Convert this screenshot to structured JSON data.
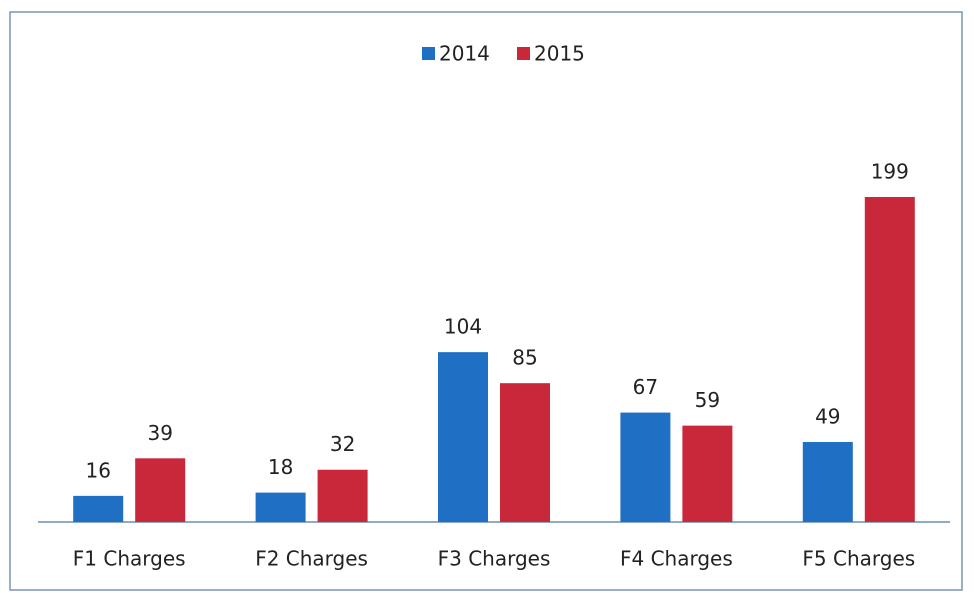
{
  "chart_data": {
    "type": "bar",
    "categories": [
      "F1 Charges",
      "F2 Charges",
      "F3 Charges",
      "F4 Charges",
      "F5 Charges"
    ],
    "series": [
      {
        "name": "2014",
        "color": "#1f6fc4",
        "values": [
          16,
          18,
          104,
          67,
          49
        ]
      },
      {
        "name": "2015",
        "color": "#c8283a",
        "values": [
          39,
          32,
          85,
          59,
          199
        ]
      }
    ],
    "legend": "top"
  }
}
